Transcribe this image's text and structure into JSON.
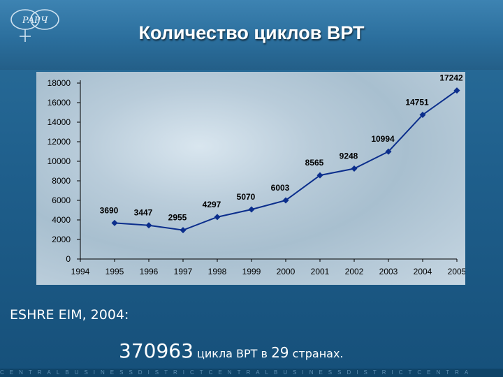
{
  "slide": {
    "title": "Количество циклов ВРТ",
    "logo_text": "РАРЧ",
    "footer_label": "ESHRE EIM, 2004:",
    "stat_number": "370963",
    "stat_text_a": "цикла ВРТ в",
    "stat_count": "29",
    "stat_text_b": "странах.",
    "band_text": "CENTRALBUSINESSDISTRICTCENTRALBUSINESSDISTRICTCENTRA"
  },
  "chart_data": {
    "type": "line",
    "x": [
      1995,
      1996,
      1997,
      1998,
      1999,
      2000,
      2001,
      2002,
      2003,
      2004,
      2005
    ],
    "values": [
      3690,
      3447,
      2955,
      4297,
      5070,
      6003,
      8565,
      9248,
      10994,
      14751,
      17242
    ],
    "x_ticks": [
      "1994",
      "1995",
      "1996",
      "1997",
      "1998",
      "1999",
      "2000",
      "2001",
      "2002",
      "2003",
      "2004",
      "2005"
    ],
    "y_ticks": [
      0,
      2000,
      4000,
      6000,
      8000,
      10000,
      12000,
      14000,
      16000,
      18000
    ],
    "ylim": [
      0,
      18000
    ],
    "xlim": [
      1994,
      2005
    ],
    "grid": false,
    "legend": "none",
    "marker": "diamond",
    "line_color": "#0b2e8c"
  }
}
